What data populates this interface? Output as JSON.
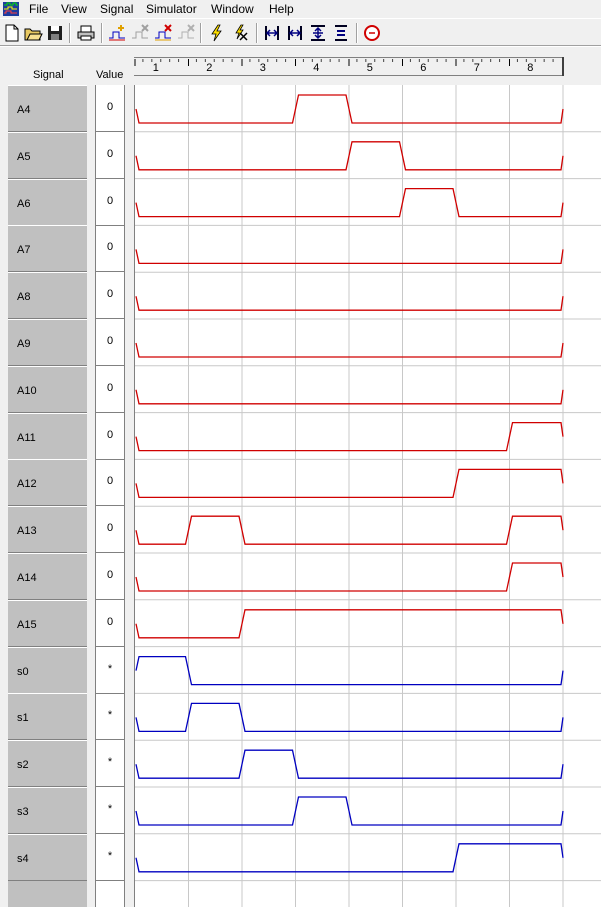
{
  "menu": {
    "items": [
      "File",
      "View",
      "Signal",
      "Simulator",
      "Window",
      "Help"
    ]
  },
  "toolbar": {
    "buttons": [
      "new-icon",
      "open-icon",
      "save-icon",
      "print-icon",
      "add-signal-icon",
      "delete-signal-icon",
      "signal-properties-icon",
      "disabled-signal-icon",
      "simulate-icon",
      "clear-simulation-icon",
      "zoom-fit-icon",
      "zoom-out-icon",
      "zoom-in-icon",
      "zoom-step-icon",
      "stop-icon"
    ]
  },
  "header": {
    "signal_label": "Signal",
    "value_label": "Value"
  },
  "ruler": {
    "ticks": [
      "1",
      "2",
      "3",
      "4",
      "5",
      "6",
      "7",
      "8"
    ]
  },
  "signals": [
    {
      "name": "A4",
      "value": "0",
      "color": "#d00000",
      "levels": [
        0,
        0,
        0,
        1,
        0,
        0,
        0,
        0
      ]
    },
    {
      "name": "A5",
      "value": "0",
      "color": "#d00000",
      "levels": [
        0,
        0,
        0,
        0,
        1,
        0,
        0,
        0
      ]
    },
    {
      "name": "A6",
      "value": "0",
      "color": "#d00000",
      "levels": [
        0,
        0,
        0,
        0,
        0,
        1,
        0,
        0
      ]
    },
    {
      "name": "A7",
      "value": "0",
      "color": "#d00000",
      "levels": [
        0,
        0,
        0,
        0,
        0,
        0,
        0,
        0
      ]
    },
    {
      "name": "A8",
      "value": "0",
      "color": "#d00000",
      "levels": [
        0,
        0,
        0,
        0,
        0,
        0,
        0,
        0
      ]
    },
    {
      "name": "A9",
      "value": "0",
      "color": "#d00000",
      "levels": [
        0,
        0,
        0,
        0,
        0,
        0,
        0,
        0
      ]
    },
    {
      "name": "A10",
      "value": "0",
      "color": "#d00000",
      "levels": [
        0,
        0,
        0,
        0,
        0,
        0,
        0,
        0
      ]
    },
    {
      "name": "A11",
      "value": "0",
      "color": "#d00000",
      "levels": [
        0,
        0,
        0,
        0,
        0,
        0,
        0,
        1
      ]
    },
    {
      "name": "A12",
      "value": "0",
      "color": "#d00000",
      "levels": [
        0,
        0,
        0,
        0,
        0,
        0,
        1,
        1
      ]
    },
    {
      "name": "A13",
      "value": "0",
      "color": "#d00000",
      "levels": [
        0,
        1,
        0,
        0,
        0,
        0,
        0,
        1
      ]
    },
    {
      "name": "A14",
      "value": "0",
      "color": "#d00000",
      "levels": [
        0,
        0,
        0,
        0,
        0,
        0,
        0,
        1
      ]
    },
    {
      "name": "A15",
      "value": "0",
      "color": "#d00000",
      "levels": [
        0,
        0,
        1,
        1,
        1,
        1,
        1,
        1
      ]
    },
    {
      "name": "s0",
      "value": "*",
      "color": "#0000c0",
      "levels": [
        1,
        0,
        0,
        0,
        0,
        0,
        0,
        0
      ]
    },
    {
      "name": "s1",
      "value": "*",
      "color": "#0000c0",
      "levels": [
        0,
        1,
        0,
        0,
        0,
        0,
        0,
        0
      ]
    },
    {
      "name": "s2",
      "value": "*",
      "color": "#0000c0",
      "levels": [
        0,
        0,
        1,
        0,
        0,
        0,
        0,
        0
      ]
    },
    {
      "name": "s3",
      "value": "*",
      "color": "#0000c0",
      "levels": [
        0,
        0,
        0,
        1,
        0,
        0,
        0,
        0
      ]
    },
    {
      "name": "s4",
      "value": "*",
      "color": "#0000c0",
      "levels": [
        0,
        0,
        0,
        0,
        0,
        0,
        1,
        1
      ]
    }
  ]
}
